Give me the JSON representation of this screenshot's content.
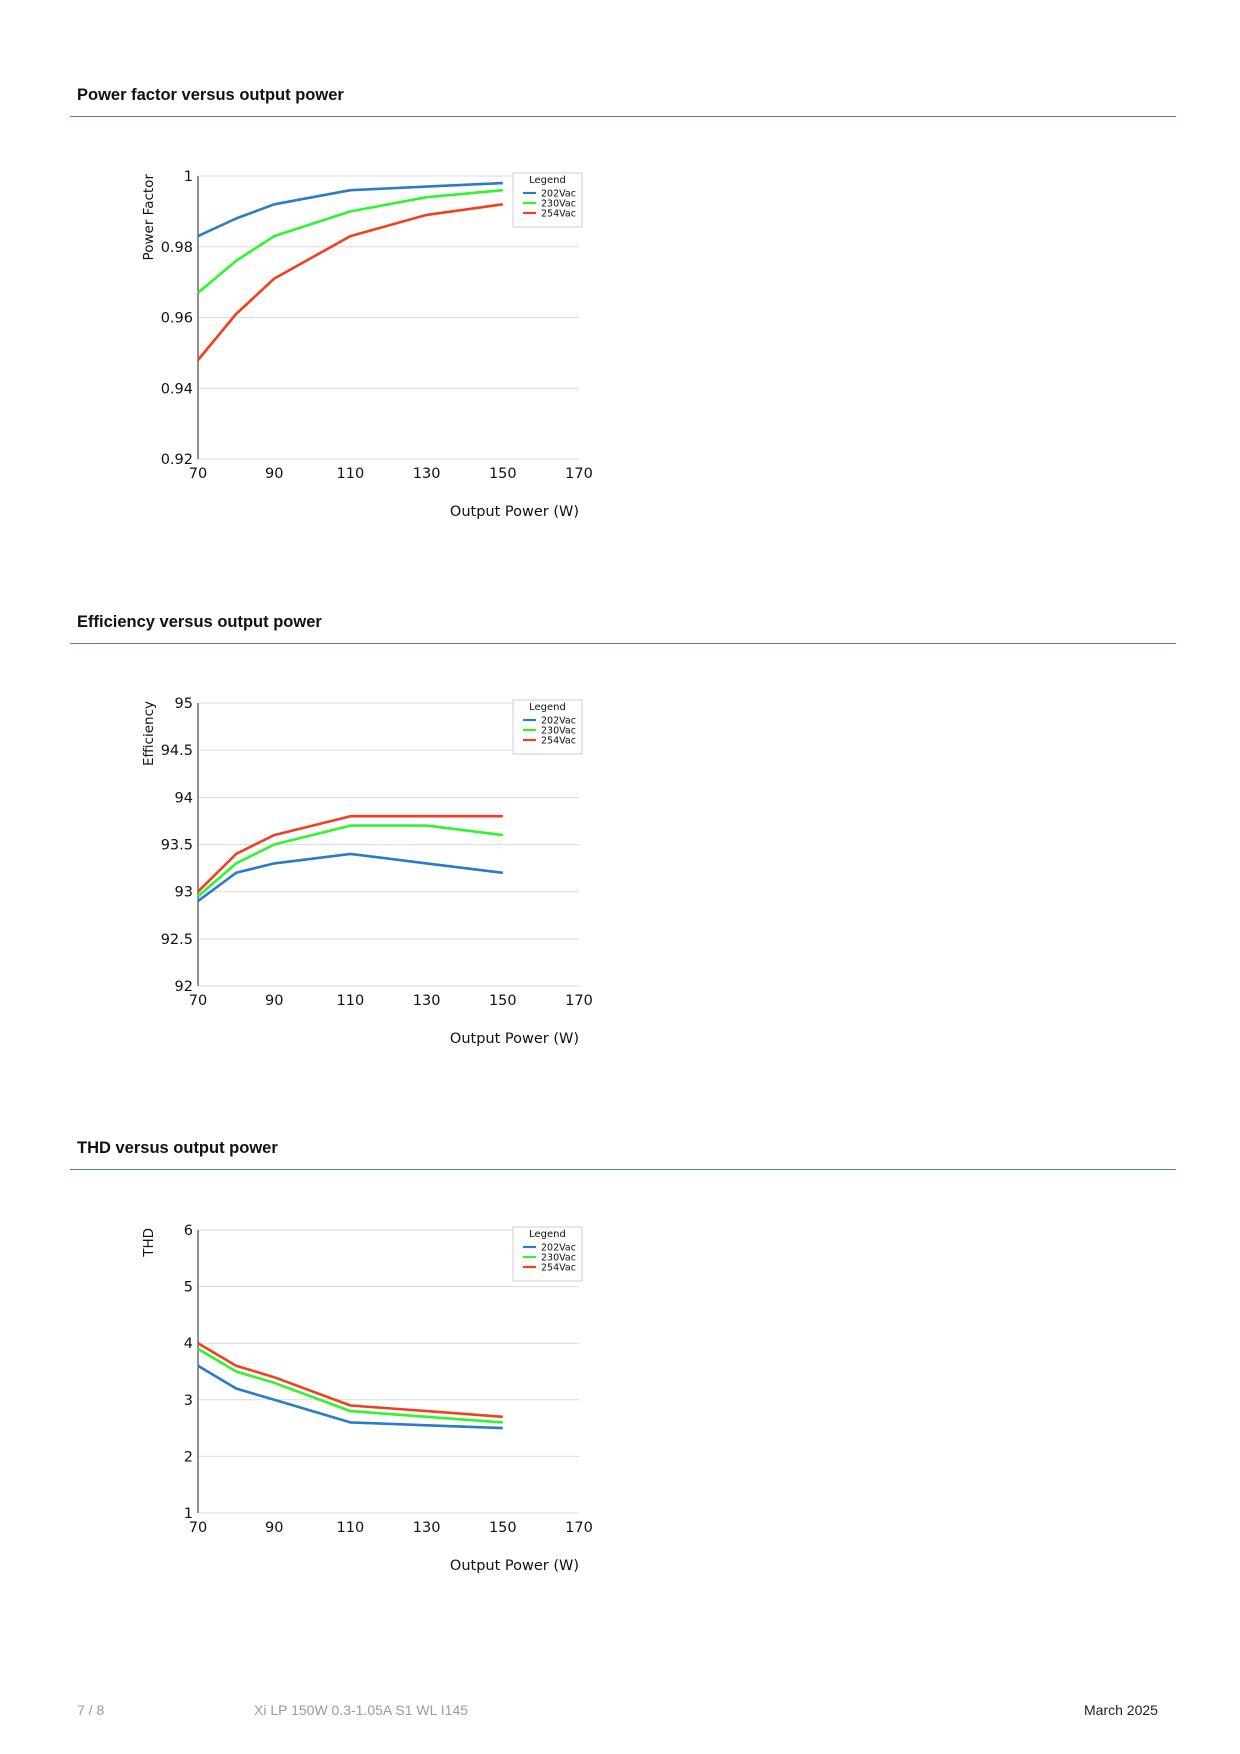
{
  "sections": [
    {
      "title": "Power factor versus output power"
    },
    {
      "title": "Efficiency versus output power"
    },
    {
      "title": "THD versus output power"
    }
  ],
  "legend": {
    "title": "Legend"
  },
  "colors": {
    "202Vac": "#2a7bc8",
    "230Vac": "#2ef52e",
    "254Vac": "#f0401e",
    "rule": "#4a7fc7",
    "grid": "#dcdcdc"
  },
  "chart_data": [
    {
      "type": "line",
      "xlabel": "Output Power (W)",
      "ylabel": "Power Factor",
      "xlim": [
        70,
        170
      ],
      "ylim": [
        0.92,
        1
      ],
      "xticks": [
        "70",
        "90",
        "110",
        "130",
        "150",
        "170"
      ],
      "yticks": [
        "0.92",
        "0.94",
        "0.96",
        "0.98",
        "1"
      ],
      "x": [
        70,
        80,
        90,
        110,
        130,
        150
      ],
      "grid": true,
      "legend_position": "top-right",
      "series": [
        {
          "name": "202Vac",
          "values": [
            0.983,
            0.988,
            0.992,
            0.996,
            0.997,
            0.998
          ]
        },
        {
          "name": "230Vac",
          "values": [
            0.967,
            0.976,
            0.983,
            0.99,
            0.994,
            0.996
          ]
        },
        {
          "name": "254Vac",
          "values": [
            0.948,
            0.961,
            0.971,
            0.983,
            0.989,
            0.992
          ]
        }
      ]
    },
    {
      "type": "line",
      "xlabel": "Output Power (W)",
      "ylabel": "Efficiency",
      "xlim": [
        70,
        170
      ],
      "ylim": [
        92,
        95
      ],
      "xticks": [
        "70",
        "90",
        "110",
        "130",
        "150",
        "170"
      ],
      "yticks": [
        "92",
        "92.5",
        "93",
        "93.5",
        "94",
        "94.5",
        "95"
      ],
      "x": [
        70,
        80,
        90,
        110,
        130,
        150
      ],
      "grid": true,
      "legend_position": "top-right",
      "series": [
        {
          "name": "202Vac",
          "values": [
            92.9,
            93.2,
            93.3,
            93.4,
            93.3,
            93.2
          ]
        },
        {
          "name": "230Vac",
          "values": [
            92.95,
            93.3,
            93.5,
            93.7,
            93.7,
            93.6
          ]
        },
        {
          "name": "254Vac",
          "values": [
            93.0,
            93.4,
            93.6,
            93.8,
            93.8,
            93.8
          ]
        }
      ]
    },
    {
      "type": "line",
      "xlabel": "Output Power (W)",
      "ylabel": "THD",
      "xlim": [
        70,
        170
      ],
      "ylim": [
        1,
        6
      ],
      "xticks": [
        "70",
        "90",
        "110",
        "130",
        "150",
        "170"
      ],
      "yticks": [
        "1",
        "2",
        "3",
        "4",
        "5",
        "6"
      ],
      "x": [
        70,
        80,
        90,
        110,
        130,
        150
      ],
      "grid": true,
      "legend_position": "top-right",
      "series": [
        {
          "name": "202Vac",
          "values": [
            3.6,
            3.2,
            3.0,
            2.6,
            2.55,
            2.5
          ]
        },
        {
          "name": "230Vac",
          "values": [
            3.9,
            3.5,
            3.3,
            2.8,
            2.7,
            2.6
          ]
        },
        {
          "name": "254Vac",
          "values": [
            4.0,
            3.6,
            3.4,
            2.9,
            2.8,
            2.7
          ]
        }
      ]
    }
  ],
  "footer": {
    "page": "7 / 8",
    "product": "Xi LP 150W 0.3-1.05A S1 WL I145",
    "date": "March 2025"
  }
}
